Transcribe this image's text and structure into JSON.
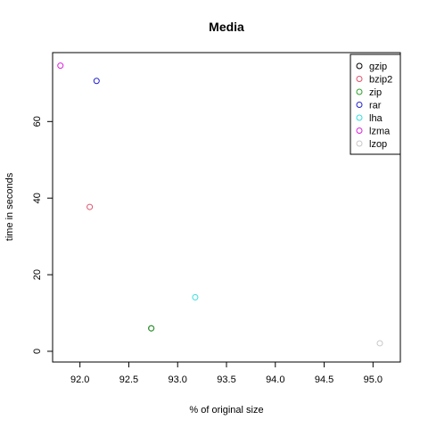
{
  "chart_data": {
    "type": "scatter",
    "title": "Media",
    "xlabel": "% of original size",
    "ylabel": "time in seconds",
    "xlim": [
      91.72,
      95.28
    ],
    "ylim": [
      -2.8,
      78.0
    ],
    "x_ticks": [
      92.0,
      92.5,
      93.0,
      93.5,
      94.0,
      94.5,
      95.0
    ],
    "x_tick_labels": [
      "92.0",
      "92.5",
      "93.0",
      "93.5",
      "94.0",
      "94.5",
      "95.0"
    ],
    "y_ticks": [
      0,
      20,
      40,
      60
    ],
    "y_tick_labels": [
      "0",
      "20",
      "40",
      "60"
    ],
    "grid": false,
    "legend_position": "top-right",
    "series": [
      {
        "name": "gzip",
        "color": "#000000",
        "x": [
          92.73
        ],
        "y": [
          6.0
        ]
      },
      {
        "name": "bzip2",
        "color": "#df536b",
        "x": [
          92.1
        ],
        "y": [
          37.7
        ]
      },
      {
        "name": "zip",
        "color": "#2ca02c",
        "x": [
          92.73
        ],
        "y": [
          6.0
        ]
      },
      {
        "name": "rar",
        "color": "#2222cc",
        "x": [
          92.17
        ],
        "y": [
          70.6
        ]
      },
      {
        "name": "lha",
        "color": "#33dddd",
        "x": [
          93.18
        ],
        "y": [
          14.1
        ]
      },
      {
        "name": "lzma",
        "color": "#dd22dd",
        "x": [
          91.8
        ],
        "y": [
          74.6
        ]
      },
      {
        "name": "lzop",
        "color": "#c8c8c8",
        "x": [
          95.07
        ],
        "y": [
          2.1
        ]
      }
    ]
  }
}
